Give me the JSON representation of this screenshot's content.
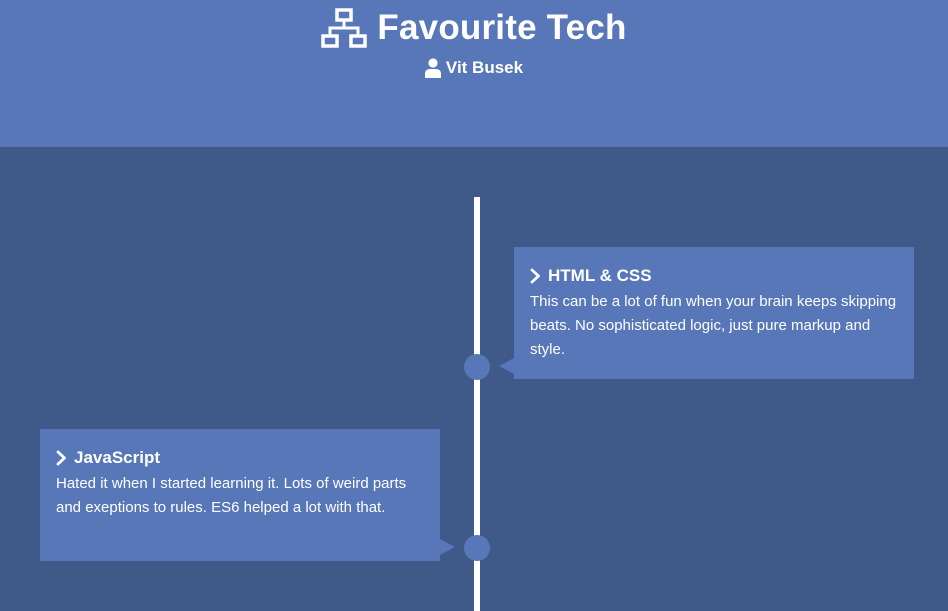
{
  "header": {
    "title": "Favourite Tech",
    "title_icon": "sitemap-icon",
    "author": "Vit Busek",
    "author_icon": "user-icon"
  },
  "timeline": {
    "items": [
      {
        "icon": "chevron-right-icon",
        "title": "HTML & CSS",
        "text": "This can be a lot of fun when your brain keeps skipping beats. No sophisticated logic, just pure markup and style.",
        "side": "right"
      },
      {
        "icon": "chevron-right-icon",
        "title": "JavaScript",
        "text": "Hated it when I started learning it. Lots of weird parts and exeptions to rules. ES6 helped a lot with that.",
        "side": "left"
      }
    ]
  },
  "colors": {
    "header_bg": "#5777b8",
    "page_bg": "#3f5a88",
    "card_bg": "#5777b8",
    "line": "#ffffff"
  }
}
